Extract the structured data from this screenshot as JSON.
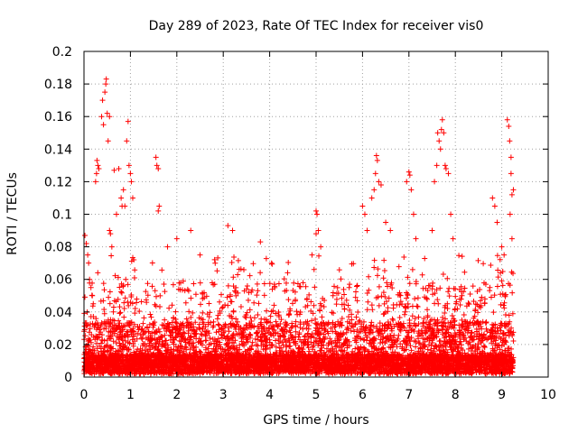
{
  "chart_data": {
    "type": "scatter",
    "title": "Day 289 of 2023, Rate Of TEC Index for receiver vis0",
    "xlabel": "GPS time / hours",
    "ylabel": "ROTI / TECUs",
    "xlim": [
      0,
      10
    ],
    "ylim": [
      0,
      0.2
    ],
    "xticks": [
      "0",
      "1",
      "2",
      "3",
      "4",
      "5",
      "6",
      "7",
      "8",
      "9",
      "10"
    ],
    "yticks": [
      "0",
      "0.02",
      "0.04",
      "0.06",
      "0.08",
      "0.1",
      "0.12",
      "0.14",
      "0.16",
      "0.18",
      "0.2"
    ],
    "grid": true,
    "marker": "+",
    "marker_color": "#ff0000",
    "x_data_extent": [
      0,
      9.25
    ],
    "series": [
      {
        "points": [
          [
            0.02,
            0.087
          ],
          [
            0.05,
            0.082
          ],
          [
            0.08,
            0.075
          ],
          [
            0.1,
            0.07
          ],
          [
            0.12,
            0.06
          ],
          [
            0.15,
            0.055
          ],
          [
            0.18,
            0.05
          ],
          [
            0.2,
            0.045
          ],
          [
            0.25,
            0.12
          ],
          [
            0.27,
            0.125
          ],
          [
            0.28,
            0.133
          ],
          [
            0.3,
            0.13
          ],
          [
            0.32,
            0.128
          ],
          [
            0.38,
            0.16
          ],
          [
            0.4,
            0.17
          ],
          [
            0.42,
            0.155
          ],
          [
            0.45,
            0.175
          ],
          [
            0.47,
            0.18
          ],
          [
            0.48,
            0.183
          ],
          [
            0.5,
            0.162
          ],
          [
            0.52,
            0.145
          ],
          [
            0.55,
            0.16
          ],
          [
            0.55,
            0.09
          ],
          [
            0.57,
            0.088
          ],
          [
            0.6,
            0.08
          ],
          [
            0.65,
            0.127
          ],
          [
            0.7,
            0.1
          ],
          [
            0.75,
            0.128
          ],
          [
            0.8,
            0.11
          ],
          [
            0.82,
            0.105
          ],
          [
            0.85,
            0.115
          ],
          [
            0.88,
            0.105
          ],
          [
            0.9,
            0.06
          ],
          [
            0.92,
            0.145
          ],
          [
            0.95,
            0.157
          ],
          [
            0.97,
            0.13
          ],
          [
            1.0,
            0.125
          ],
          [
            1.02,
            0.12
          ],
          [
            1.05,
            0.11
          ],
          [
            1.55,
            0.135
          ],
          [
            1.57,
            0.13
          ],
          [
            1.6,
            0.128
          ],
          [
            1.62,
            0.105
          ],
          [
            1.6,
            0.102
          ],
          [
            1.8,
            0.08
          ],
          [
            2.0,
            0.085
          ],
          [
            2.3,
            0.09
          ],
          [
            2.5,
            0.075
          ],
          [
            3.1,
            0.093
          ],
          [
            3.2,
            0.09
          ],
          [
            3.8,
            0.083
          ],
          [
            5.0,
            0.102
          ],
          [
            5.02,
            0.1
          ],
          [
            5.05,
            0.09
          ],
          [
            5.0,
            0.088
          ],
          [
            5.1,
            0.08
          ],
          [
            6.0,
            0.105
          ],
          [
            6.05,
            0.1
          ],
          [
            6.1,
            0.09
          ],
          [
            6.2,
            0.11
          ],
          [
            6.25,
            0.115
          ],
          [
            6.28,
            0.125
          ],
          [
            6.3,
            0.136
          ],
          [
            6.32,
            0.133
          ],
          [
            6.35,
            0.12
          ],
          [
            6.4,
            0.118
          ],
          [
            6.5,
            0.095
          ],
          [
            6.6,
            0.09
          ],
          [
            6.95,
            0.12
          ],
          [
            7.0,
            0.126
          ],
          [
            7.02,
            0.124
          ],
          [
            7.05,
            0.115
          ],
          [
            7.1,
            0.1
          ],
          [
            7.15,
            0.085
          ],
          [
            7.5,
            0.09
          ],
          [
            7.55,
            0.12
          ],
          [
            7.6,
            0.13
          ],
          [
            7.62,
            0.15
          ],
          [
            7.65,
            0.145
          ],
          [
            7.68,
            0.14
          ],
          [
            7.7,
            0.152
          ],
          [
            7.72,
            0.158
          ],
          [
            7.75,
            0.15
          ],
          [
            7.78,
            0.13
          ],
          [
            7.8,
            0.128
          ],
          [
            7.85,
            0.125
          ],
          [
            7.9,
            0.1
          ],
          [
            7.95,
            0.085
          ],
          [
            8.8,
            0.11
          ],
          [
            8.85,
            0.105
          ],
          [
            8.9,
            0.095
          ],
          [
            9.0,
            0.08
          ],
          [
            9.05,
            0.075
          ],
          [
            9.12,
            0.158
          ],
          [
            9.15,
            0.154
          ],
          [
            9.17,
            0.145
          ],
          [
            9.2,
            0.135
          ],
          [
            9.2,
            0.125
          ],
          [
            9.18,
            0.1
          ],
          [
            9.22,
            0.112
          ],
          [
            9.25,
            0.115
          ],
          [
            9.22,
            0.085
          ]
        ]
      }
    ]
  }
}
